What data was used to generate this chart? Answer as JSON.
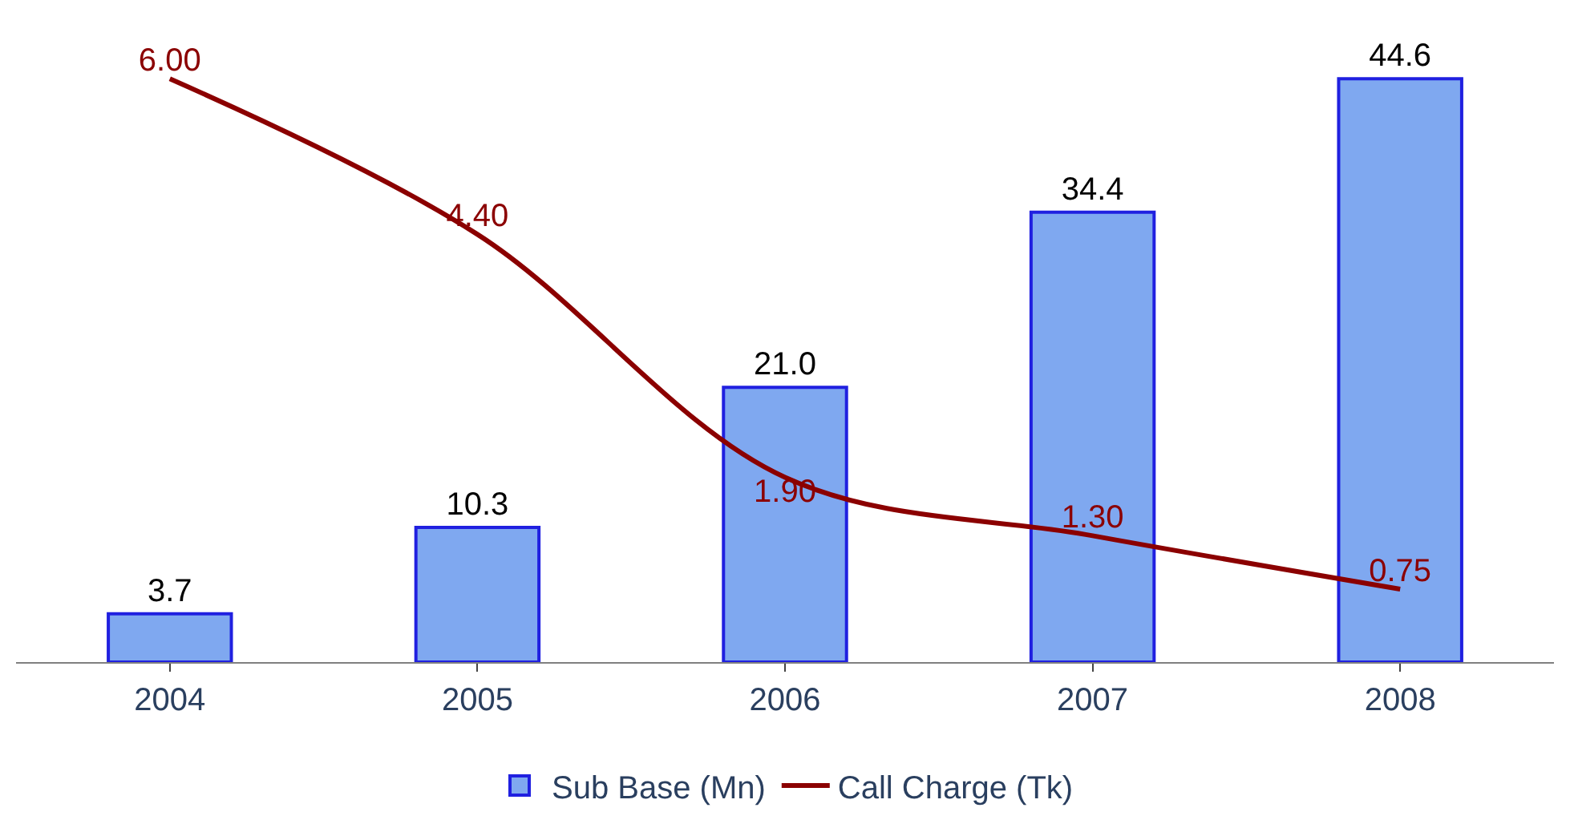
{
  "chart_data": {
    "type": "bar",
    "categories": [
      "2004",
      "2005",
      "2006",
      "2007",
      "2008"
    ],
    "series": [
      {
        "name": "Sub Base (Mn)",
        "color": "#7fa8f0",
        "values": [
          3.7,
          10.3,
          21.0,
          34.4,
          44.6
        ],
        "value_labels": [
          "3.7",
          "10.3",
          "21.0",
          "34.4",
          "44.6"
        ]
      },
      {
        "name": "Call Charge (Tk)",
        "type": "line",
        "axis": "y2",
        "color": "#8b0000",
        "values": [
          6.0,
          4.4,
          1.9,
          1.3,
          0.75
        ],
        "value_labels": [
          "6.00",
          "4.40",
          "1.90",
          "1.30",
          "0.75"
        ]
      }
    ],
    "tick_labels": "x",
    "legend": "bottom"
  }
}
